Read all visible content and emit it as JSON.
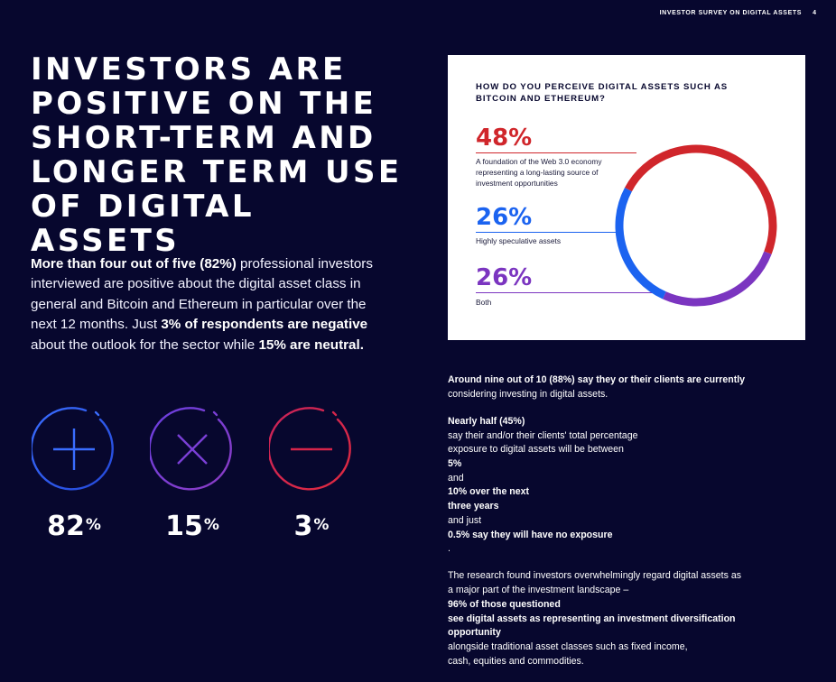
{
  "header": {
    "label": "INVESTOR SURVEY ON DIGITAL ASSETS",
    "page_number": "4"
  },
  "title_lines": [
    "INVESTORS ARE",
    "POSITIVE ON THE",
    "SHORT-TERM AND",
    "LONGER TERM USE",
    "OF DIGITAL ASSETS"
  ],
  "lead": {
    "b1": "More than four out of five (82%)",
    "t1": " professional investors interviewed are positive about the digital asset class in general and Bitcoin and Ethereum in particular over the next 12 months. Just ",
    "b2": "3% of respondents are negative",
    "t2": " about the outlook for the sector while ",
    "b3": "15% are neutral."
  },
  "stats": [
    {
      "value": "82",
      "unit": "%",
      "icon": "plus-circle-icon",
      "color": "#3366ff"
    },
    {
      "value": "15",
      "unit": "%",
      "icon": "x-circle-icon",
      "color": "#7b3fd6"
    },
    {
      "value": "3",
      "unit": "%",
      "icon": "minus-circle-icon",
      "color": "#d6254a"
    }
  ],
  "chart_data": {
    "type": "pie",
    "title": "HOW DO YOU PERCEIVE DIGITAL ASSETS SUCH AS BITCOIN AND ETHEREUM?",
    "title_lines": [
      "HOW DO YOU PERCEIVE DIGITAL ASSETS SUCH AS",
      "BITCOIN AND ETHEREUM?"
    ],
    "slices": [
      {
        "value": 48,
        "label": "48%",
        "description_lines": [
          "A foundation of the Web 3.0 economy",
          "representing a long-lasting source of",
          "investment opportunities"
        ],
        "color": "#d0262b"
      },
      {
        "value": 26,
        "label": "26%",
        "description_lines": [
          "Highly speculative assets"
        ],
        "color": "#1b63f0"
      },
      {
        "value": 26,
        "label": "26%",
        "description_lines": [
          "Both"
        ],
        "color": "#7b35c0"
      }
    ]
  },
  "body": {
    "p1": [
      "Around nine out of 10 (88%) say they or their clients are currently",
      "considering investing in digital assets."
    ],
    "p2": [
      {
        "b": "Nearly half (45%)",
        "t": " say their and/or their clients' total percentage"
      },
      {
        "t": "exposure to digital assets will be between ",
        "b": "5%",
        "t2": " and ",
        "b2": "10% over the next"
      },
      {
        "b": "three years",
        "t": " and just ",
        "b2": "0.5% say they will have no exposure",
        "t2": "."
      }
    ],
    "p3": [
      {
        "t": "The research found investors overwhelmingly regard digital assets as"
      },
      {
        "t": "a major part of the investment landscape – ",
        "b": "96% of those questioned"
      },
      {
        "b": "see digital assets as representing an investment diversification"
      },
      {
        "b": "opportunity",
        "t": " alongside traditional asset classes such as fixed income,"
      },
      {
        "t": "cash, equities and commodities."
      }
    ]
  }
}
